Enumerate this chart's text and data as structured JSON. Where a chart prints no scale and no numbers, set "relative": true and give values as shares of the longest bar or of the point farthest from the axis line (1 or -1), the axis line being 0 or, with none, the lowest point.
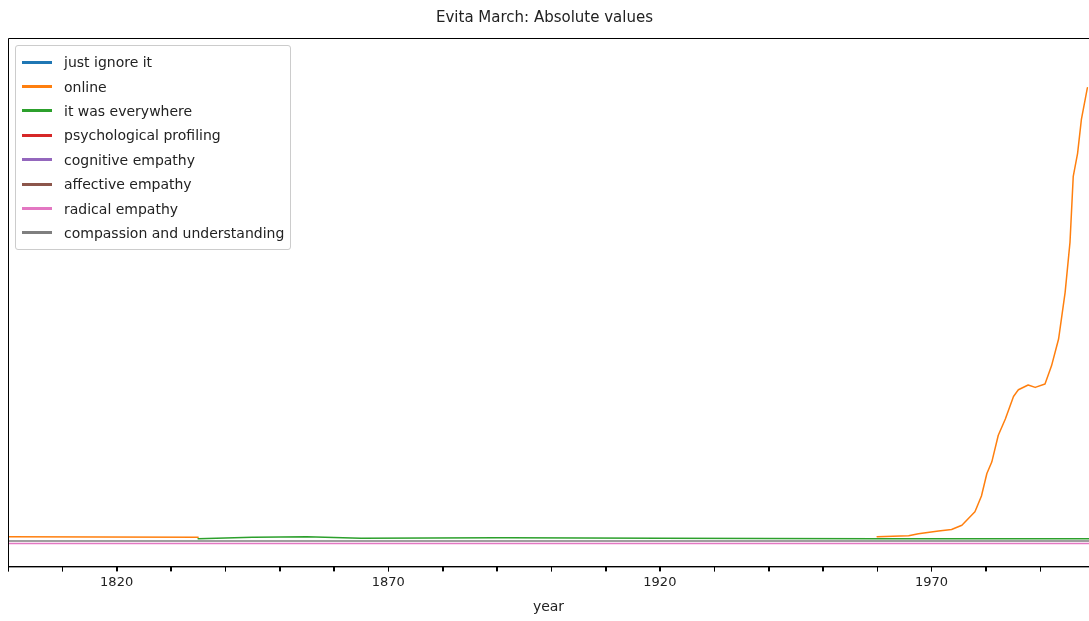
{
  "chart_data": {
    "type": "line",
    "title": "Evita March: Absolute values",
    "xlabel": "year",
    "relative": true,
    "xlim": [
      1800,
      1999
    ],
    "xticks": [
      {
        "value": 1800,
        "label": null
      },
      {
        "value": 1810,
        "label": null
      },
      1820,
      {
        "value": 1830,
        "label": null
      },
      {
        "value": 1840,
        "label": null
      },
      {
        "value": 1850,
        "label": null
      },
      {
        "value": 1860,
        "label": null
      },
      1870,
      {
        "value": 1880,
        "label": null
      },
      {
        "value": 1890,
        "label": null
      },
      {
        "value": 1900,
        "label": null
      },
      {
        "value": 1910,
        "label": null
      },
      1920,
      {
        "value": 1930,
        "label": null
      },
      {
        "value": 1940,
        "label": null
      },
      {
        "value": 1950,
        "label": null
      },
      {
        "value": 1960,
        "label": null
      },
      1970,
      {
        "value": 1980,
        "label": null
      },
      {
        "value": 1990,
        "label": null
      }
    ],
    "grid": false,
    "legend": "top left",
    "marker": "none",
    "line_style": "solid",
    "series": [
      {
        "name": "just ignore it",
        "color": "#1f77b4"
      },
      {
        "name": "online",
        "color": "#ff7f0e",
        "x": [
          1800,
          1835,
          1845,
          1960,
          1965.8,
          1967.6,
          1971.3,
          1973.7,
          1975.6,
          1978.0,
          1979.2,
          1980.2,
          1981.1,
          1982.3,
          1983.6,
          1985.1,
          1986.0,
          1987.8,
          1989.1,
          1990.9,
          1992.1,
          1993.4,
          1994.6,
          1995.5,
          1996.1,
          1996.9,
          1997.6,
          1998.7
        ],
        "values": [
          0.062,
          0.061,
          null,
          0.062,
          0.064,
          0.068,
          0.074,
          0.077,
          0.086,
          0.114,
          0.147,
          0.194,
          0.218,
          0.274,
          0.308,
          0.355,
          0.369,
          0.379,
          0.374,
          0.381,
          0.419,
          0.475,
          0.572,
          0.677,
          0.815,
          0.863,
          0.934,
          1
        ]
      },
      {
        "name": "it was everywhere",
        "color": "#2ca02c",
        "x": [
          1835,
          1845,
          1855,
          1865,
          1890,
          1920,
          1960,
          1999
        ],
        "values": [
          0.058,
          0.061,
          0.062,
          0.059,
          0.06,
          0.059,
          0.058,
          0.058
        ]
      },
      {
        "name": "psychological profiling",
        "color": "#d62728"
      },
      {
        "name": "cognitive empathy",
        "color": "#9467bd"
      },
      {
        "name": "affective empathy",
        "color": "#8c564b"
      },
      {
        "name": "radical empathy",
        "color": "#e377c2",
        "x": [
          1800,
          1999
        ],
        "values": [
          0.048,
          0.048
        ]
      },
      {
        "name": "compassion and understanding",
        "color": "#7f7f7f",
        "x": [
          1800,
          1999
        ],
        "values": [
          0.053,
          0.053
        ]
      }
    ]
  }
}
